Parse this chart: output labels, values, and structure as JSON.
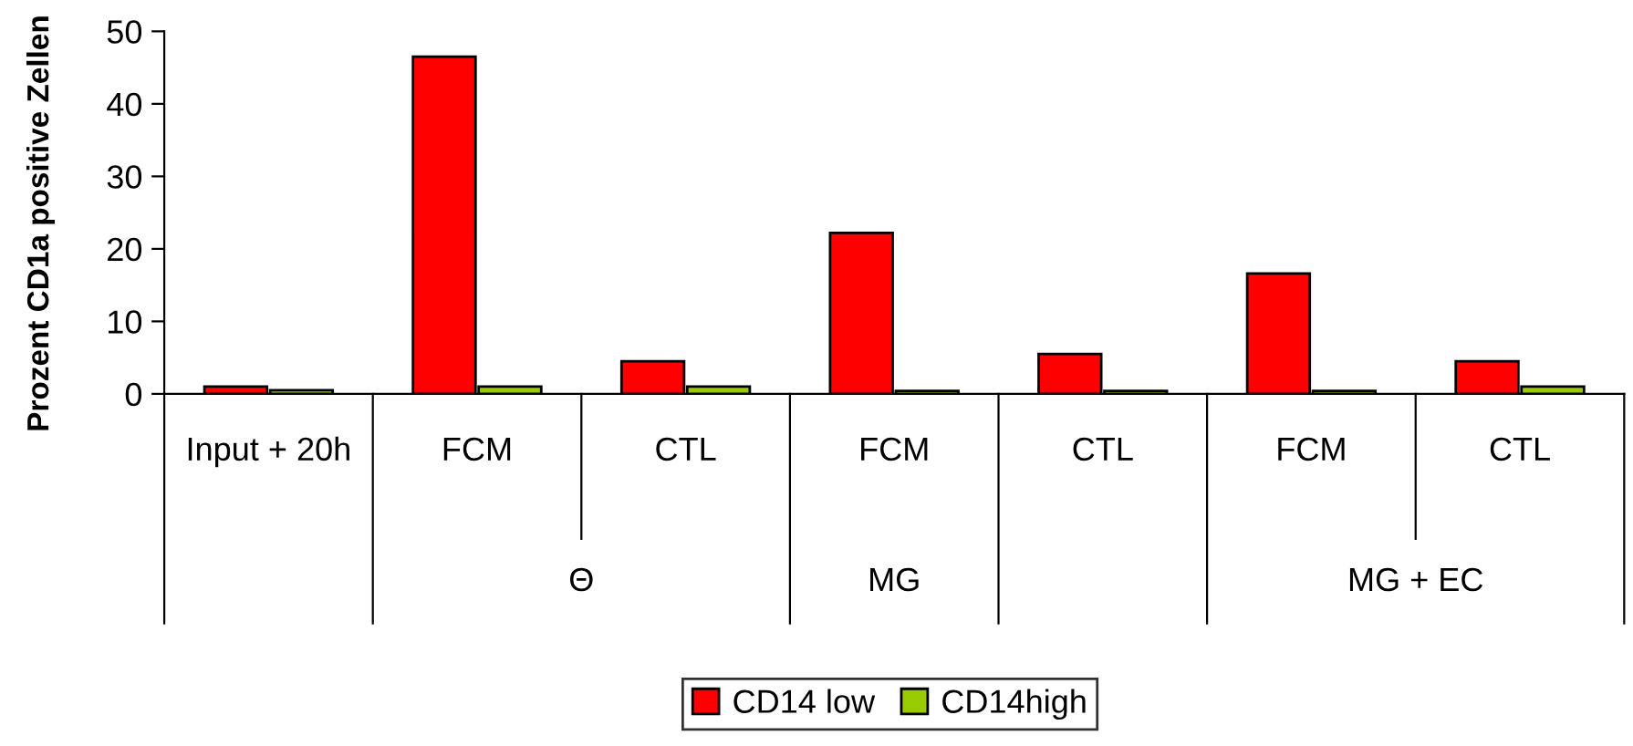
{
  "chart_data": {
    "type": "bar",
    "ylabel": "Prozent CD1a positive Zellen",
    "categories": [
      "Input + 20h",
      "FCM",
      "CTL",
      "FCM",
      "CTL",
      "FCM",
      "CTL"
    ],
    "series": [
      {
        "name": "CD14 low",
        "color": "#ff0000",
        "values": [
          1.0,
          46.5,
          4.5,
          22.2,
          5.5,
          16.6,
          4.5
        ]
      },
      {
        "name": "CD14high",
        "color": "#99cc00",
        "values": [
          0.5,
          1.0,
          1.0,
          0.4,
          0.4,
          0.4,
          1.0
        ]
      }
    ],
    "annotations": [
      "Θ",
      "MG",
      "MG + EC"
    ],
    "ylim": [
      0,
      50
    ],
    "yticks": [
      0,
      10,
      20,
      30,
      40,
      50
    ],
    "grid": false,
    "legend": "bottom"
  }
}
